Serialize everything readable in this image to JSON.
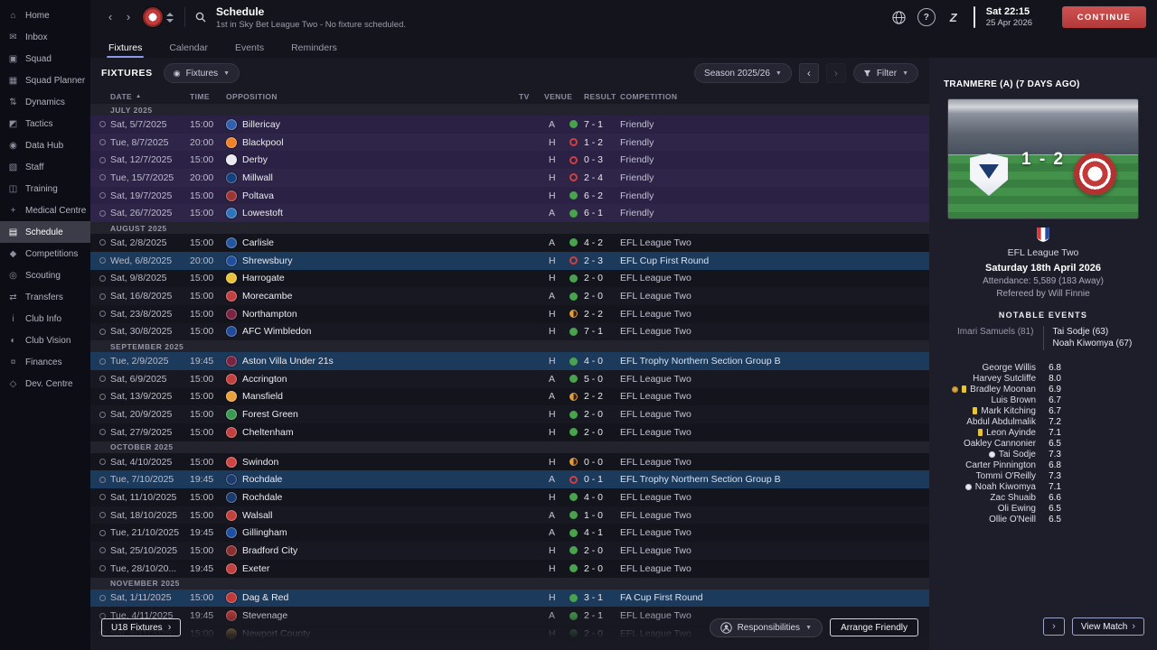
{
  "icons": {
    "home": "⌂",
    "inbox": "✉",
    "squad": "▣",
    "squad-planner": "▦",
    "dynamics": "⇅",
    "tactics": "◩",
    "data-hub": "◉",
    "staff": "▧",
    "training": "◫",
    "medical-centre": "+",
    "schedule": "▤",
    "competitions": "◆",
    "scouting": "◎",
    "transfers": "⇄",
    "club-info": "i",
    "club-vision": "◐",
    "finances": "¤",
    "dev-centre": "◇"
  },
  "sidebar": {
    "items": [
      {
        "label": "Home",
        "icon": "home",
        "selected": false
      },
      {
        "label": "Inbox",
        "icon": "inbox",
        "selected": false
      },
      {
        "label": "Squad",
        "icon": "squad",
        "selected": false
      },
      {
        "label": "Squad Planner",
        "icon": "squad-planner",
        "selected": false
      },
      {
        "label": "Dynamics",
        "icon": "dynamics",
        "selected": false
      },
      {
        "label": "Tactics",
        "icon": "tactics",
        "selected": false
      },
      {
        "label": "Data Hub",
        "icon": "data-hub",
        "selected": false
      },
      {
        "label": "Staff",
        "icon": "staff",
        "selected": false
      },
      {
        "label": "Training",
        "icon": "training",
        "selected": false
      },
      {
        "label": "Medical Centre",
        "icon": "medical-centre",
        "selected": false
      },
      {
        "label": "Schedule",
        "icon": "schedule",
        "selected": true
      },
      {
        "label": "Competitions",
        "icon": "competitions",
        "selected": false
      },
      {
        "label": "Scouting",
        "icon": "scouting",
        "selected": false
      },
      {
        "label": "Transfers",
        "icon": "transfers",
        "selected": false
      },
      {
        "label": "Club Info",
        "icon": "club-info",
        "selected": false
      },
      {
        "label": "Club Vision",
        "icon": "club-vision",
        "selected": false
      },
      {
        "label": "Finances",
        "icon": "finances",
        "selected": false
      },
      {
        "label": "Dev. Centre",
        "icon": "dev-centre",
        "selected": false
      }
    ]
  },
  "header": {
    "title": "Schedule",
    "subtitle": "1st in Sky Bet League Two - No fixture scheduled.",
    "clock": "Sat 22:15",
    "date": "25 Apr 2026",
    "continue_label": "CONTINUE"
  },
  "tabs": [
    {
      "label": "Fixtures",
      "active": true
    },
    {
      "label": "Calendar",
      "active": false
    },
    {
      "label": "Events",
      "active": false
    },
    {
      "label": "Reminders",
      "active": false
    }
  ],
  "toolbar": {
    "section_label": "FIXTURES",
    "view_label": "Fixtures",
    "season_label": "Season 2025/26",
    "filter_label": "Filter"
  },
  "table": {
    "columns": [
      "DATE",
      "TIME",
      "OPPOSITION",
      "TV",
      "VENUE",
      "RESULT",
      "COMPETITION"
    ]
  },
  "fixtures": {
    "groups": [
      {
        "month": "JULY 2025",
        "rows": [
          {
            "date": "Sat, 5/7/2025",
            "time": "15:00",
            "opp": "Billericay",
            "badge": "#2f5fae",
            "venue": "A",
            "res": "w",
            "result": "7 - 1",
            "comp": "Friendly",
            "type": "friendly"
          },
          {
            "date": "Tue, 8/7/2025",
            "time": "20:00",
            "opp": "Blackpool",
            "badge": "#f08228",
            "venue": "H",
            "res": "l",
            "result": "1 - 2",
            "comp": "Friendly",
            "type": "friendly"
          },
          {
            "date": "Sat, 12/7/2025",
            "time": "15:00",
            "opp": "Derby",
            "badge": "#e9e9ef",
            "venue": "H",
            "res": "l",
            "result": "0 - 3",
            "comp": "Friendly",
            "type": "friendly"
          },
          {
            "date": "Tue, 15/7/2025",
            "time": "20:00",
            "opp": "Millwall",
            "badge": "#16407c",
            "venue": "H",
            "res": "l",
            "result": "2 - 4",
            "comp": "Friendly",
            "type": "friendly"
          },
          {
            "date": "Sat, 19/7/2025",
            "time": "15:00",
            "opp": "Poltava",
            "badge": "#9c3636",
            "venue": "H",
            "res": "w",
            "result": "6 - 2",
            "comp": "Friendly",
            "type": "friendly"
          },
          {
            "date": "Sat, 26/7/2025",
            "time": "15:00",
            "opp": "Lowestoft",
            "badge": "#2f74ba",
            "venue": "A",
            "res": "w",
            "result": "6 - 1",
            "comp": "Friendly",
            "type": "friendly"
          }
        ]
      },
      {
        "month": "AUGUST 2025",
        "rows": [
          {
            "date": "Sat, 2/8/2025",
            "time": "15:00",
            "opp": "Carlisle",
            "badge": "#2456a0",
            "venue": "A",
            "res": "w",
            "result": "4 - 2",
            "comp": "EFL League Two",
            "type": "league"
          },
          {
            "date": "Wed, 6/8/2025",
            "time": "20:00",
            "opp": "Shrewsbury",
            "badge": "#1f4f9e",
            "venue": "H",
            "res": "l",
            "result": "2 - 3",
            "comp": "EFL Cup First Round",
            "type": "cup"
          },
          {
            "date": "Sat, 9/8/2025",
            "time": "15:00",
            "opp": "Harrogate",
            "badge": "#e8c23a",
            "venue": "H",
            "res": "w",
            "result": "2 - 0",
            "comp": "EFL League Two",
            "type": "league"
          },
          {
            "date": "Sat, 16/8/2025",
            "time": "15:00",
            "opp": "Morecambe",
            "badge": "#c24040",
            "venue": "A",
            "res": "w",
            "result": "2 - 0",
            "comp": "EFL League Two",
            "type": "league"
          },
          {
            "date": "Sat, 23/8/2025",
            "time": "15:00",
            "opp": "Northampton",
            "badge": "#7a2342",
            "venue": "H",
            "res": "d",
            "result": "2 - 2",
            "comp": "EFL League Two",
            "type": "league"
          },
          {
            "date": "Sat, 30/8/2025",
            "time": "15:00",
            "opp": "AFC Wimbledon",
            "badge": "#224a9a",
            "venue": "H",
            "res": "w",
            "result": "7 - 1",
            "comp": "EFL League Two",
            "type": "league"
          }
        ]
      },
      {
        "month": "SEPTEMBER 2025",
        "rows": [
          {
            "date": "Tue, 2/9/2025",
            "time": "19:45",
            "opp": "Aston Villa Under 21s",
            "badge": "#7a2342",
            "venue": "H",
            "res": "w",
            "result": "4 - 0",
            "comp": "EFL Trophy Northern Section Group B",
            "type": "cup"
          },
          {
            "date": "Sat, 6/9/2025",
            "time": "15:00",
            "opp": "Accrington",
            "badge": "#c24040",
            "venue": "A",
            "res": "w",
            "result": "5 - 0",
            "comp": "EFL League Two",
            "type": "league"
          },
          {
            "date": "Sat, 13/9/2025",
            "time": "15:00",
            "opp": "Mansfield",
            "badge": "#e8a23a",
            "venue": "A",
            "res": "d",
            "result": "2 - 2",
            "comp": "EFL League Two",
            "type": "league"
          },
          {
            "date": "Sat, 20/9/2025",
            "time": "15:00",
            "opp": "Forest Green",
            "badge": "#3a9a52",
            "venue": "H",
            "res": "w",
            "result": "2 - 0",
            "comp": "EFL League Two",
            "type": "league"
          },
          {
            "date": "Sat, 27/9/2025",
            "time": "15:00",
            "opp": "Cheltenham",
            "badge": "#c24040",
            "venue": "H",
            "res": "w",
            "result": "2 - 0",
            "comp": "EFL League Two",
            "type": "league"
          }
        ]
      },
      {
        "month": "OCTOBER 2025",
        "rows": [
          {
            "date": "Sat, 4/10/2025",
            "time": "15:00",
            "opp": "Swindon",
            "badge": "#cf4545",
            "venue": "H",
            "res": "d",
            "result": "0 - 0",
            "comp": "EFL League Two",
            "type": "league"
          },
          {
            "date": "Tue, 7/10/2025",
            "time": "19:45",
            "opp": "Rochdale",
            "badge": "#1b3b6e",
            "venue": "A",
            "res": "l",
            "result": "0 - 1",
            "comp": "EFL Trophy Northern Section Group B",
            "type": "cup"
          },
          {
            "date": "Sat, 11/10/2025",
            "time": "15:00",
            "opp": "Rochdale",
            "badge": "#1b3b6e",
            "venue": "H",
            "res": "w",
            "result": "4 - 0",
            "comp": "EFL League Two",
            "type": "league"
          },
          {
            "date": "Sat, 18/10/2025",
            "time": "15:00",
            "opp": "Walsall",
            "badge": "#c24040",
            "venue": "A",
            "res": "w",
            "result": "1 - 0",
            "comp": "EFL League Two",
            "type": "league"
          },
          {
            "date": "Tue, 21/10/2025",
            "time": "19:45",
            "opp": "Gillingham",
            "badge": "#1f4f9e",
            "venue": "A",
            "res": "w",
            "result": "4 - 1",
            "comp": "EFL League Two",
            "type": "league"
          },
          {
            "date": "Sat, 25/10/2025",
            "time": "15:00",
            "opp": "Bradford City",
            "badge": "#8a3030",
            "venue": "H",
            "res": "w",
            "result": "2 - 0",
            "comp": "EFL League Two",
            "type": "league"
          },
          {
            "date": "Tue, 28/10/20...",
            "time": "19:45",
            "opp": "Exeter",
            "badge": "#c24040",
            "venue": "H",
            "res": "w",
            "result": "2 - 0",
            "comp": "EFL League Two",
            "type": "league"
          }
        ]
      },
      {
        "month": "NOVEMBER 2025",
        "rows": [
          {
            "date": "Sat, 1/11/2025",
            "time": "15:00",
            "opp": "Dag & Red",
            "badge": "#c03838",
            "venue": "H",
            "res": "w",
            "result": "3 - 1",
            "comp": "FA Cup First Round",
            "type": "cup"
          },
          {
            "date": "Tue, 4/11/2025",
            "time": "19:45",
            "opp": "Stevenage",
            "badge": "#c03838",
            "venue": "A",
            "res": "w",
            "result": "2 - 1",
            "comp": "EFL League Two",
            "type": "league"
          },
          {
            "date": "Sat, 8/11/2025",
            "time": "15:00",
            "opp": "Newport County",
            "badge": "#e8b23a",
            "venue": "H",
            "res": "w",
            "result": "2 - 0",
            "comp": "EFL League Two",
            "type": "league"
          }
        ]
      }
    ]
  },
  "footer": {
    "u18_label": "U18 Fixtures",
    "responsibilities_label": "Responsibilities",
    "arrange_label": "Arrange Friendly"
  },
  "match_panel": {
    "title": "TRANMERE (A) (7 DAYS AGO)",
    "score": "1 - 2",
    "competition": "EFL League Two",
    "date": "Saturday 18th April 2026",
    "attendance": "Attendance: 5,589 (183 Away)",
    "referee": "Refereed by Will Finnie",
    "notable_events_label": "NOTABLE EVENTS",
    "home_scorers": [
      "Imari Samuels (81)"
    ],
    "away_scorers": [
      "Tai Sodje (63)",
      "Noah Kiwomya (67)"
    ],
    "ratings": [
      {
        "name": "George Willis",
        "rating": "6.8",
        "icons": []
      },
      {
        "name": "Harvey Sutcliffe",
        "rating": "8.0",
        "icons": []
      },
      {
        "name": "Bradley Moonan",
        "rating": "6.9",
        "icons": [
          "goal-gold",
          "yellow-card"
        ]
      },
      {
        "name": "Luis Brown",
        "rating": "6.7",
        "icons": []
      },
      {
        "name": "Mark Kitching",
        "rating": "6.7",
        "icons": [
          "yellow-card"
        ]
      },
      {
        "name": "Abdul Abdulmalik",
        "rating": "7.2",
        "icons": []
      },
      {
        "name": "Leon Ayinde",
        "rating": "7.1",
        "icons": [
          "yellow-card"
        ]
      },
      {
        "name": "Oakley Cannonier",
        "rating": "6.5",
        "icons": []
      },
      {
        "name": "Tai Sodje",
        "rating": "7.3",
        "icons": [
          "goal"
        ]
      },
      {
        "name": "Carter Pinnington",
        "rating": "6.8",
        "icons": []
      },
      {
        "name": "Tommi O'Reilly",
        "rating": "7.3",
        "icons": []
      },
      {
        "name": "Noah Kiwomya",
        "rating": "7.1",
        "icons": [
          "goal"
        ]
      },
      {
        "name": "Zac Shuaib",
        "rating": "6.6",
        "icons": []
      },
      {
        "name": "Oli Ewing",
        "rating": "6.5",
        "icons": []
      },
      {
        "name": "Ollie O'Neill",
        "rating": "6.5",
        "icons": []
      }
    ],
    "more_label": "›",
    "view_match_label": "View Match"
  },
  "colors": {
    "accent_red": "#c24444",
    "win_green": "#49a24e",
    "loss_red": "#cf4040",
    "draw_amber": "#e09b3e",
    "cup_row_blue": "#1c3a5c",
    "friendly_row_purple": "#2a2145"
  }
}
